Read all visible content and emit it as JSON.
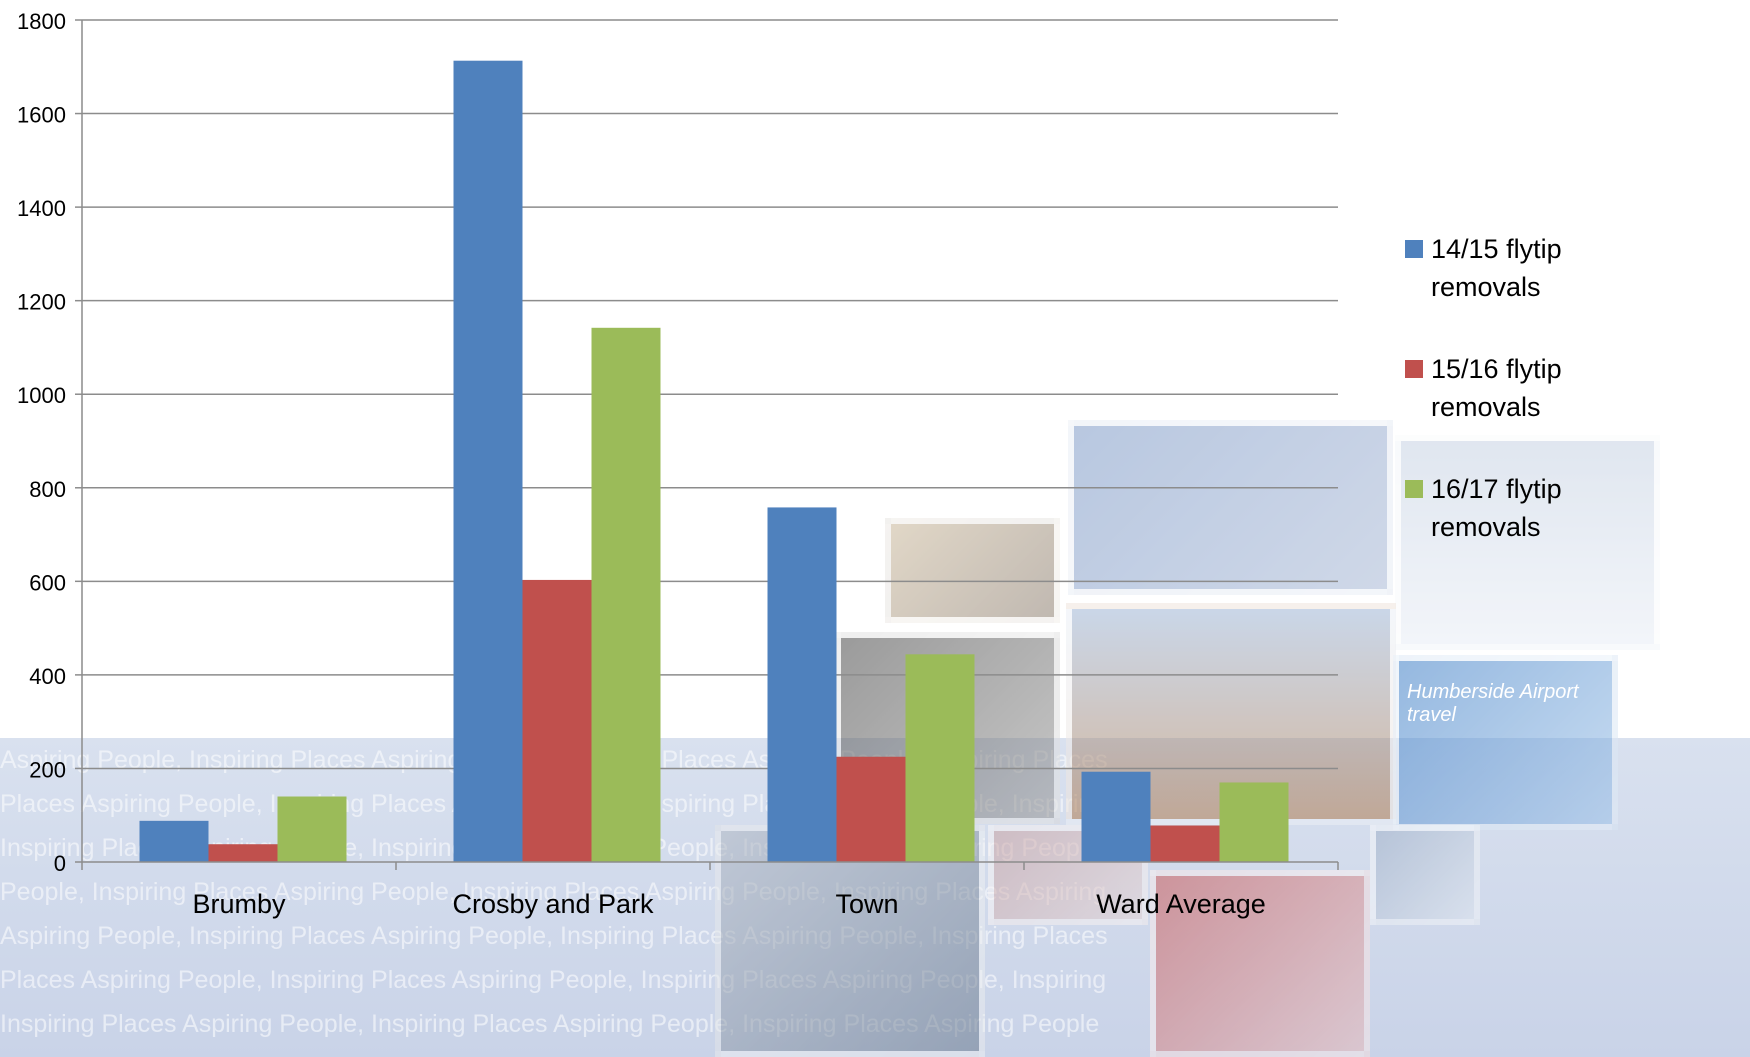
{
  "background": {
    "watermark_lines": [
      "Aspiring People, Inspiring Places Aspiring People, Inspiring Places Aspiring People, Inspiring Places",
      "Places Aspiring People, Inspiring Places Aspiring People, Inspiring Places Aspiring People, Inspiring",
      "Inspiring Places Aspiring People, Inspiring Places Aspiring People, Inspiring Places Aspiring People",
      "People, Inspiring Places Aspiring People, Inspiring Places Aspiring People, Inspiring Places Aspiring",
      "Aspiring People, Inspiring Places Aspiring People, Inspiring Places Aspiring People, Inspiring Places",
      "Places Aspiring People, Inspiring Places Aspiring People, Inspiring Places Aspiring People, Inspiring",
      "Inspiring Places Aspiring People, Inspiring Places Aspiring People, Inspiring Places Aspiring People"
    ],
    "photo_caption": "Humberside Airport travel"
  },
  "chart_data": {
    "type": "bar",
    "categories": [
      "Brumby",
      "Crosby and Park",
      "Town",
      "Ward Average"
    ],
    "series": [
      {
        "name": "14/15 flytip removals",
        "color": "#4f81bd",
        "values": [
          88,
          1713,
          758,
          193
        ]
      },
      {
        "name": "15/16 flytip removals",
        "color": "#c0504d",
        "values": [
          38,
          603,
          225,
          78
        ]
      },
      {
        "name": "16/17 flytip removals",
        "color": "#9bbb59",
        "values": [
          140,
          1142,
          444,
          170
        ]
      }
    ],
    "ylim": [
      0,
      1800
    ],
    "yticks": [
      "0",
      "200",
      "400",
      "600",
      "800",
      "1000",
      "1200",
      "1400",
      "1600",
      "1800"
    ],
    "grid": true,
    "legend_position": "right"
  }
}
